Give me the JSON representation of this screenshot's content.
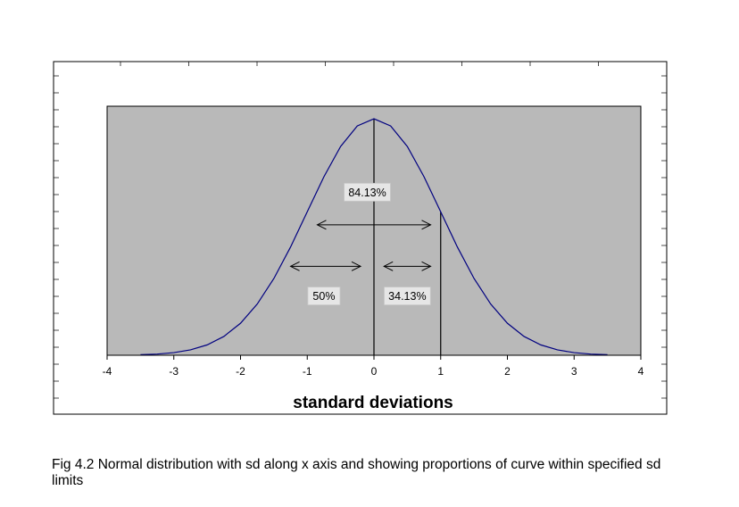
{
  "chart_data": {
    "type": "line",
    "title": "",
    "xlabel": "standard deviations",
    "ylabel": "",
    "xlim": [
      -4,
      4
    ],
    "ylim": [
      0,
      0.42
    ],
    "x_ticks": [
      "-4",
      "-3",
      "-2",
      "-1",
      "0",
      "1",
      "2",
      "3",
      "4"
    ],
    "grid": false,
    "legend": "none",
    "series": [
      {
        "x": [
          -3.5,
          -3.25,
          -3.0,
          -2.75,
          -2.5,
          -2.25,
          -2.0,
          -1.75,
          -1.5,
          -1.25,
          -1.0,
          -0.75,
          -0.5,
          -0.25,
          0.0,
          0.25,
          0.5,
          0.75,
          1.0,
          1.25,
          1.5,
          1.75,
          2.0,
          2.25,
          2.5,
          2.75,
          3.0,
          3.25,
          3.5
        ],
        "y": [
          0.0009,
          0.002,
          0.0044,
          0.0091,
          0.0175,
          0.0317,
          0.054,
          0.0863,
          0.1295,
          0.1826,
          0.242,
          0.3011,
          0.3521,
          0.3867,
          0.3989,
          0.3867,
          0.3521,
          0.3011,
          0.242,
          0.1826,
          0.1295,
          0.0863,
          0.054,
          0.0317,
          0.0175,
          0.0091,
          0.0044,
          0.002,
          0.0009
        ]
      }
    ],
    "vertical_lines": [
      0,
      1
    ],
    "annotations": [
      {
        "label": "84.13%",
        "x": -0.1,
        "y": 0.275
      },
      {
        "label": "50%",
        "x": -0.75,
        "y": 0.1
      },
      {
        "label": "34.13%",
        "x": 0.5,
        "y": 0.1
      }
    ],
    "arrows": [
      {
        "from": -0.85,
        "to": 0.85,
        "y": 0.22
      },
      {
        "from": -1.25,
        "to": -0.2,
        "y": 0.15
      },
      {
        "from": 0.15,
        "to": 0.85,
        "y": 0.15
      }
    ],
    "colors": {
      "plot_background": "#b9b9b9",
      "curve": "#000080",
      "lines": "#000000"
    }
  },
  "caption": "Fig 4.2 Normal distribution with sd along x axis and showing proportions of curve within specified sd limits"
}
